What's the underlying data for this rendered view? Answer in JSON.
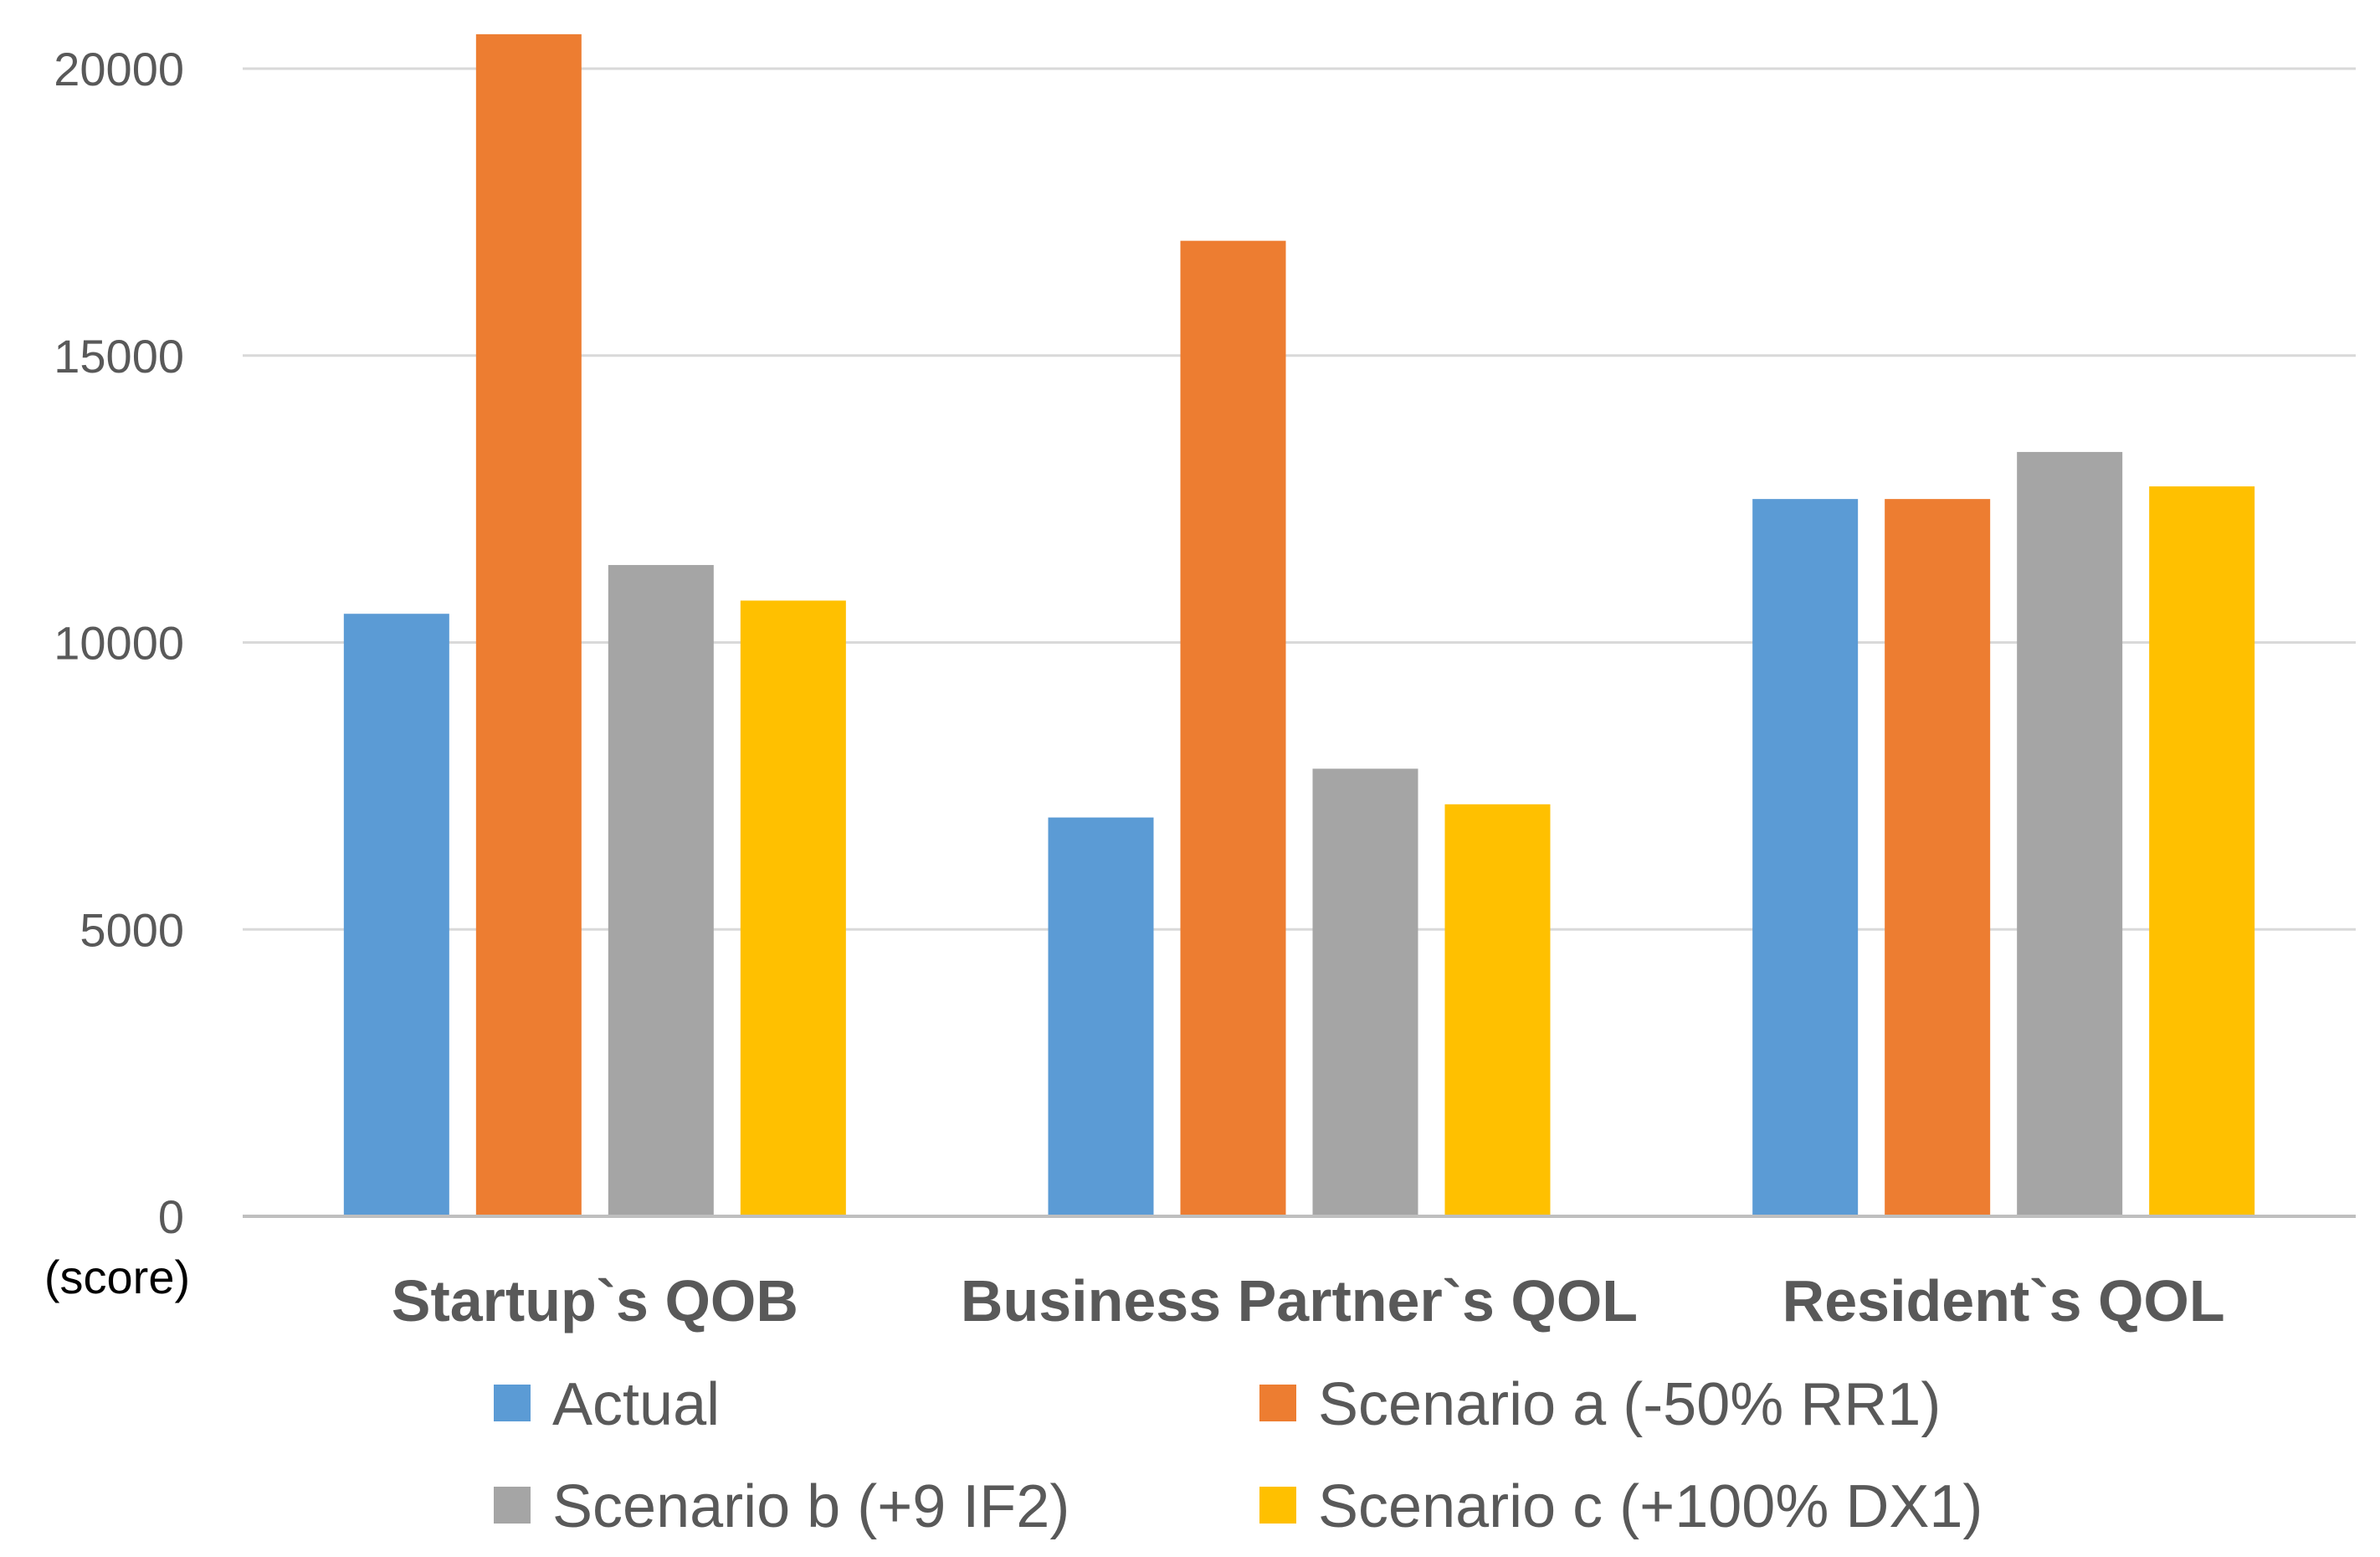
{
  "chart_data": {
    "type": "bar",
    "title": "",
    "xlabel": "",
    "ylabel": "",
    "y_unit_label": "(score)",
    "categories": [
      "Startup`s QOB",
      "Business Partner`s QOL",
      "Resident`s QOL"
    ],
    "series": [
      {
        "name": "Actual",
        "color": "#5b9bd5",
        "values": [
          10500,
          6950,
          12500
        ]
      },
      {
        "name": "Scenario a (-50% RR1)",
        "color": "#ed7d31",
        "values": [
          20600,
          17000,
          12500
        ]
      },
      {
        "name": "Scenario b (+9 IF2)",
        "color": "#a5a5a5",
        "values": [
          11350,
          7800,
          13320
        ]
      },
      {
        "name": "Scenario c (+100% DX1)",
        "color": "#ffc000",
        "values": [
          10730,
          7180,
          12720
        ]
      }
    ],
    "ylim": [
      0,
      20000
    ],
    "yticks": [
      0,
      5000,
      10000,
      15000,
      20000
    ],
    "grid": true,
    "legend_position": "bottom"
  }
}
